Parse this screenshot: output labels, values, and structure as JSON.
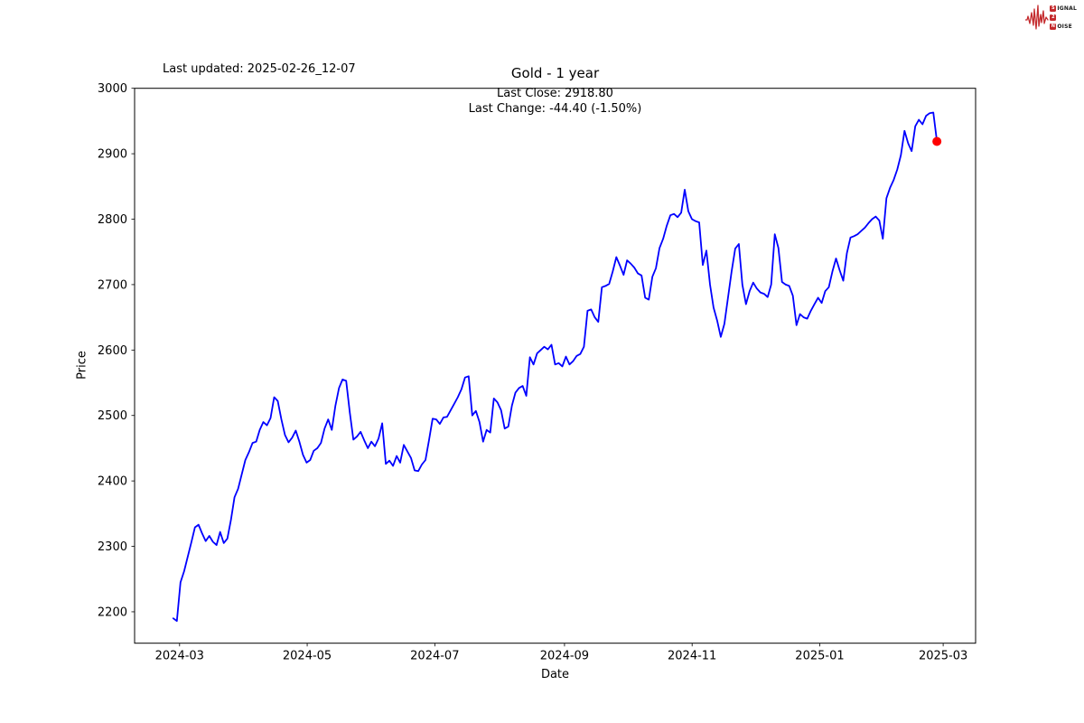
{
  "figure": {
    "last_updated": "Last updated: 2025-02-26_12-07"
  },
  "logo": {
    "color": "#c42a2d",
    "rows": [
      {
        "badge": "S",
        "rest": "IGNAL"
      },
      {
        "badge": "2",
        "rest": ""
      },
      {
        "badge": "N",
        "rest": "OISE"
      }
    ]
  },
  "chart_data": {
    "type": "line",
    "title": "Gold - 1 year",
    "annotations": [
      "Last Close: 2918.80",
      "Last Change: -44.40 (-1.50%)"
    ],
    "xlabel": "Date",
    "ylabel": "Price",
    "series_name": "Gold",
    "line_color": "#0000ff",
    "marker_color": "#ff0000",
    "last_close": 2918.8,
    "last_change": -44.4,
    "last_change_pct": -1.5,
    "x_start_date": "2024-02-27",
    "x_end_date": "2025-02-26",
    "span_days": 365,
    "ylim": [
      2152,
      3000
    ],
    "xlim_days": [
      -18.5,
      383.5
    ],
    "grid": false,
    "y_ticks": [
      2200,
      2300,
      2400,
      2500,
      2600,
      2700,
      2800,
      2900,
      3000
    ],
    "x_ticks": [
      {
        "label": "2024-03",
        "day": 3
      },
      {
        "label": "2024-05",
        "day": 64
      },
      {
        "label": "2024-07",
        "day": 125
      },
      {
        "label": "2024-09",
        "day": 187
      },
      {
        "label": "2024-11",
        "day": 248
      },
      {
        "label": "2025-01",
        "day": 309
      },
      {
        "label": "2025-03",
        "day": 368
      }
    ],
    "prices": [
      2190,
      2186,
      2245,
      2262,
      2284,
      2306,
      2329,
      2333,
      2320,
      2308,
      2316,
      2307,
      2302,
      2322,
      2305,
      2312,
      2340,
      2375,
      2388,
      2410,
      2432,
      2444,
      2458,
      2460,
      2478,
      2490,
      2485,
      2496,
      2528,
      2522,
      2494,
      2470,
      2459,
      2466,
      2477,
      2460,
      2440,
      2428,
      2432,
      2446,
      2450,
      2458,
      2480,
      2494,
      2478,
      2515,
      2542,
      2555,
      2553,
      2505,
      2463,
      2468,
      2475,
      2462,
      2450,
      2460,
      2453,
      2465,
      2488,
      2426,
      2431,
      2423,
      2438,
      2428,
      2455,
      2445,
      2435,
      2416,
      2415,
      2425,
      2432,
      2462,
      2495,
      2494,
      2487,
      2497,
      2498,
      2508,
      2518,
      2528,
      2540,
      2558,
      2560,
      2500,
      2507,
      2490,
      2460,
      2478,
      2474,
      2526,
      2520,
      2508,
      2480,
      2483,
      2515,
      2535,
      2542,
      2545,
      2530,
      2589,
      2578,
      2595,
      2600,
      2605,
      2601,
      2608,
      2578,
      2580,
      2575,
      2590,
      2578,
      2583,
      2591,
      2594,
      2605,
      2660,
      2662,
      2650,
      2643,
      2696,
      2698,
      2701,
      2720,
      2742,
      2729,
      2715,
      2737,
      2732,
      2726,
      2717,
      2714,
      2680,
      2677,
      2712,
      2725,
      2756,
      2770,
      2790,
      2806,
      2808,
      2803,
      2810,
      2845,
      2812,
      2800,
      2797,
      2795,
      2730,
      2752,
      2700,
      2665,
      2645,
      2620,
      2640,
      2680,
      2720,
      2755,
      2762,
      2700,
      2670,
      2690,
      2703,
      2694,
      2688,
      2686,
      2681,
      2700,
      2777,
      2756,
      2704,
      2700,
      2698,
      2683,
      2638,
      2655,
      2650,
      2648,
      2660,
      2670,
      2680,
      2672,
      2690,
      2696,
      2720,
      2740,
      2722,
      2706,
      2748,
      2772,
      2774,
      2777,
      2782,
      2787,
      2794,
      2800,
      2804,
      2798,
      2770,
      2832,
      2848,
      2860,
      2876,
      2898,
      2935,
      2916,
      2904,
      2942,
      2952,
      2945,
      2958,
      2962,
      2963,
      2918.8
    ]
  }
}
